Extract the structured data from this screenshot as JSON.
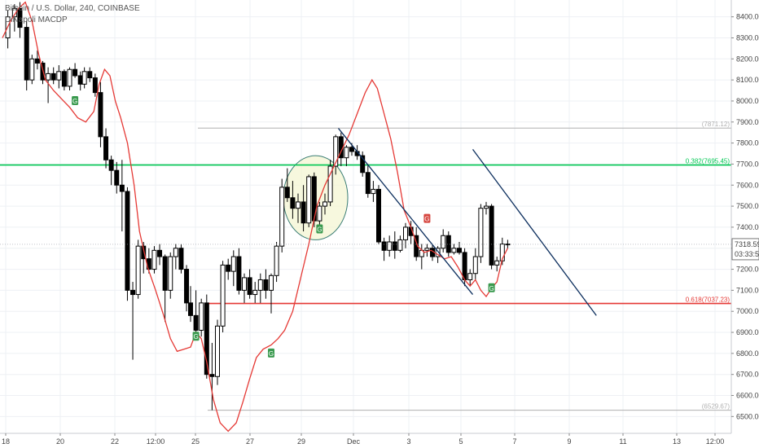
{
  "legend": {
    "symbol_line": "Bitcoin / U.S. Dollar, 240, COINBASE",
    "indicator_line": "DiNapoli MACDP"
  },
  "chart_data": {
    "type": "candlestick",
    "title": "",
    "xlabel": "",
    "ylabel": "",
    "ylim": [
      6420,
      8480
    ],
    "x_tick_labels": [
      "18",
      "20",
      "22",
      "12:00",
      "25",
      "27",
      "29",
      "Dec",
      "3",
      "5",
      "7",
      "9",
      "11",
      "13",
      "12:00"
    ],
    "y_tick_labels": [
      "6500.00",
      "6600.00",
      "6700.00",
      "6800.00",
      "6900.00",
      "7000.00",
      "7100.00",
      "7200.00",
      "7300.00",
      "7400.00",
      "7500.00",
      "7600.00",
      "7700.00",
      "7800.00",
      "7900.00",
      "8000.00",
      "8100.00",
      "8200.00",
      "8300.00",
      "8400.00"
    ],
    "grid": true,
    "last_price": "7318.59",
    "countdown": "03:33:52",
    "colors": {
      "up_candle": "#ffffff",
      "down_candle": "#000000",
      "candle_outline": "#000000",
      "macdp_line": "#e53935",
      "fib_0382": "#00c853",
      "fib_0618": "#e53935",
      "fib_extreme": "#b0b0b0",
      "trendline": "#0d2f5e",
      "buy_tag": "#3a9a4f",
      "sell_tag": "#d6463f",
      "circle_fill": "#f3f5d0",
      "circle_stroke": "#3a7d74"
    },
    "fib_levels": [
      {
        "label": "(7871.12)",
        "value": 7871.12
      },
      {
        "label": "0.382(7695.45)",
        "value": 7695.45
      },
      {
        "label": "0.618(7037.23)",
        "value": 7037.23
      },
      {
        "label": "(6529.67)",
        "value": 6529.67
      }
    ],
    "candles": [
      [
        0.4,
        8300,
        8430,
        8250,
        8400
      ],
      [
        0.9,
        8400,
        8460,
        8330,
        8440
      ],
      [
        1.3,
        8440,
        8470,
        8300,
        8350
      ],
      [
        1.8,
        8350,
        8380,
        8050,
        8100
      ],
      [
        2.2,
        8100,
        8220,
        8080,
        8200
      ],
      [
        2.6,
        8200,
        8240,
        8150,
        8180
      ],
      [
        3.0,
        8180,
        8190,
        8080,
        8100
      ],
      [
        3.4,
        8100,
        8160,
        7990,
        8130
      ],
      [
        3.8,
        8130,
        8160,
        8080,
        8100
      ],
      [
        4.2,
        8100,
        8170,
        8060,
        8140
      ],
      [
        4.6,
        8140,
        8150,
        8050,
        8070
      ],
      [
        5.0,
        8070,
        8160,
        8050,
        8150
      ],
      [
        5.4,
        8150,
        8180,
        8110,
        8120
      ],
      [
        5.8,
        8120,
        8140,
        8050,
        8080
      ],
      [
        6.1,
        8080,
        8160,
        8060,
        8140
      ],
      [
        6.5,
        8140,
        8160,
        8090,
        8110
      ],
      [
        6.9,
        8110,
        8130,
        8020,
        8040
      ],
      [
        7.3,
        8040,
        8090,
        7780,
        7830
      ],
      [
        7.7,
        7830,
        7870,
        7680,
        7720
      ],
      [
        8.1,
        7720,
        7740,
        7600,
        7670
      ],
      [
        8.5,
        7670,
        7710,
        7560,
        7600
      ],
      [
        8.9,
        7600,
        7720,
        7380,
        7570
      ],
      [
        9.3,
        7570,
        7590,
        7050,
        7100
      ],
      [
        9.7,
        7100,
        7140,
        6770,
        7080
      ],
      [
        10.1,
        7080,
        7340,
        7060,
        7310
      ],
      [
        10.5,
        7310,
        7330,
        7180,
        7250
      ],
      [
        10.9,
        7250,
        7300,
        7180,
        7200
      ],
      [
        11.3,
        7200,
        7310,
        7180,
        7290
      ],
      [
        11.7,
        7290,
        7320,
        7220,
        7260
      ],
      [
        12.1,
        7260,
        7270,
        6950,
        7100
      ],
      [
        12.5,
        7100,
        7280,
        7060,
        7260
      ],
      [
        12.9,
        7260,
        7320,
        7200,
        7300
      ],
      [
        13.3,
        7300,
        7320,
        7180,
        7200
      ],
      [
        13.7,
        7200,
        7220,
        7000,
        7040
      ],
      [
        14.0,
        7040,
        7120,
        6950,
        6980
      ],
      [
        14.4,
        6980,
        7100,
        6890,
        6910
      ],
      [
        14.8,
        6910,
        7060,
        6880,
        7040
      ],
      [
        15.2,
        7040,
        7080,
        6680,
        6700
      ],
      [
        15.6,
        6700,
        6850,
        6530,
        6690
      ],
      [
        16.0,
        6690,
        6960,
        6650,
        6930
      ],
      [
        16.4,
        6930,
        7240,
        6900,
        7220
      ],
      [
        16.8,
        7220,
        7250,
        7150,
        7190
      ],
      [
        17.2,
        7190,
        7290,
        7120,
        7260
      ],
      [
        17.6,
        7260,
        7300,
        7080,
        7100
      ],
      [
        18.0,
        7100,
        7180,
        7040,
        7160
      ],
      [
        18.4,
        7160,
        7200,
        7060,
        7080
      ],
      [
        18.8,
        7080,
        7140,
        7040,
        7100
      ],
      [
        19.2,
        7100,
        7180,
        7040,
        7150
      ],
      [
        19.6,
        7150,
        7200,
        7060,
        7100
      ],
      [
        20.0,
        7100,
        7180,
        6990,
        7170
      ],
      [
        20.4,
        7170,
        7330,
        7140,
        7310
      ],
      [
        20.8,
        7310,
        7630,
        7280,
        7590
      ],
      [
        21.2,
        7590,
        7680,
        7520,
        7540
      ],
      [
        21.6,
        7540,
        7620,
        7440,
        7490
      ],
      [
        22.0,
        7490,
        7560,
        7420,
        7520
      ],
      [
        22.4,
        7520,
        7600,
        7380,
        7420
      ],
      [
        22.8,
        7420,
        7650,
        7400,
        7640
      ],
      [
        23.2,
        7640,
        7660,
        7400,
        7430
      ],
      [
        23.6,
        7430,
        7520,
        7380,
        7500
      ],
      [
        24.0,
        7500,
        7560,
        7460,
        7520
      ],
      [
        24.4,
        7520,
        7720,
        7500,
        7690
      ],
      [
        24.8,
        7690,
        7840,
        7650,
        7830
      ],
      [
        25.2,
        7830,
        7850,
        7690,
        7730
      ],
      [
        25.6,
        7730,
        7790,
        7690,
        7780
      ],
      [
        26.0,
        7780,
        7800,
        7740,
        7760
      ],
      [
        26.4,
        7760,
        7790,
        7720,
        7740
      ],
      [
        26.8,
        7740,
        7760,
        7640,
        7660
      ],
      [
        27.2,
        7660,
        7700,
        7540,
        7560
      ],
      [
        27.6,
        7560,
        7620,
        7520,
        7580
      ],
      [
        28.0,
        7580,
        7600,
        7320,
        7330
      ],
      [
        28.4,
        7330,
        7350,
        7240,
        7290
      ],
      [
        28.8,
        7290,
        7360,
        7260,
        7330
      ],
      [
        29.2,
        7330,
        7380,
        7250,
        7290
      ],
      [
        29.6,
        7290,
        7360,
        7280,
        7340
      ],
      [
        30.0,
        7340,
        7420,
        7300,
        7400
      ],
      [
        30.4,
        7400,
        7430,
        7320,
        7360
      ],
      [
        30.8,
        7360,
        7400,
        7240,
        7260
      ],
      [
        31.2,
        7260,
        7320,
        7200,
        7290
      ],
      [
        31.6,
        7290,
        7320,
        7260,
        7300
      ],
      [
        32.0,
        7300,
        7320,
        7240,
        7260
      ],
      [
        32.4,
        7260,
        7310,
        7230,
        7300
      ],
      [
        32.8,
        7300,
        7390,
        7280,
        7360
      ],
      [
        33.2,
        7360,
        7380,
        7260,
        7280
      ],
      [
        33.6,
        7280,
        7320,
        7270,
        7300
      ],
      [
        34.0,
        7300,
        7330,
        7270,
        7280
      ],
      [
        34.4,
        7280,
        7300,
        7120,
        7150
      ],
      [
        34.8,
        7150,
        7200,
        7120,
        7180
      ],
      [
        35.2,
        7180,
        7300,
        7150,
        7260
      ],
      [
        35.6,
        7260,
        7510,
        7230,
        7490
      ],
      [
        36.0,
        7490,
        7520,
        7460,
        7500
      ],
      [
        36.4,
        7500,
        7510,
        7200,
        7220
      ],
      [
        36.8,
        7220,
        7260,
        7190,
        7240
      ],
      [
        37.2,
        7240,
        7350,
        7220,
        7320
      ],
      [
        37.6,
        7320,
        7340,
        7300,
        7319
      ]
    ],
    "macdp_line": [
      [
        0.0,
        8300
      ],
      [
        0.6,
        8380
      ],
      [
        1.2,
        8440
      ],
      [
        1.7,
        8470
      ],
      [
        2.2,
        8380
      ],
      [
        2.7,
        8220
      ],
      [
        3.2,
        8100
      ],
      [
        3.8,
        8050
      ],
      [
        4.4,
        8010
      ],
      [
        5.0,
        7970
      ],
      [
        5.6,
        7920
      ],
      [
        6.2,
        7900
      ],
      [
        6.8,
        7950
      ],
      [
        7.2,
        8080
      ],
      [
        7.6,
        8150
      ],
      [
        8.0,
        8120
      ],
      [
        8.4,
        8000
      ],
      [
        8.8,
        7920
      ],
      [
        9.3,
        7800
      ],
      [
        9.8,
        7600
      ],
      [
        10.2,
        7380
      ],
      [
        10.8,
        7210
      ],
      [
        11.4,
        7100
      ],
      [
        12.0,
        6980
      ],
      [
        12.5,
        6870
      ],
      [
        13.0,
        6810
      ],
      [
        13.5,
        6820
      ],
      [
        14.0,
        6830
      ],
      [
        14.4,
        6900
      ],
      [
        14.8,
        6870
      ],
      [
        15.2,
        6760
      ],
      [
        15.7,
        6580
      ],
      [
        16.2,
        6470
      ],
      [
        16.8,
        6430
      ],
      [
        17.4,
        6470
      ],
      [
        17.9,
        6570
      ],
      [
        18.4,
        6680
      ],
      [
        18.9,
        6780
      ],
      [
        19.4,
        6820
      ],
      [
        20.0,
        6840
      ],
      [
        20.5,
        6870
      ],
      [
        21.0,
        6910
      ],
      [
        21.6,
        7000
      ],
      [
        22.2,
        7160
      ],
      [
        22.8,
        7320
      ],
      [
        23.4,
        7500
      ],
      [
        24.0,
        7600
      ],
      [
        24.6,
        7680
      ],
      [
        25.2,
        7760
      ],
      [
        25.8,
        7840
      ],
      [
        26.4,
        7940
      ],
      [
        27.0,
        8040
      ],
      [
        27.5,
        8100
      ],
      [
        27.9,
        8060
      ],
      [
        28.4,
        7940
      ],
      [
        28.9,
        7820
      ],
      [
        29.4,
        7660
      ],
      [
        29.9,
        7480
      ],
      [
        30.4,
        7400
      ],
      [
        30.9,
        7310
      ],
      [
        31.4,
        7280
      ],
      [
        31.9,
        7290
      ],
      [
        32.4,
        7270
      ],
      [
        32.9,
        7250
      ],
      [
        33.4,
        7260
      ],
      [
        33.9,
        7210
      ],
      [
        34.4,
        7150
      ],
      [
        34.8,
        7120
      ],
      [
        35.2,
        7150
      ],
      [
        35.6,
        7100
      ],
      [
        36.0,
        7070
      ],
      [
        36.4,
        7110
      ],
      [
        36.8,
        7140
      ],
      [
        37.2,
        7250
      ],
      [
        37.6,
        7300
      ]
    ],
    "trendlines": [
      {
        "from": [
          25.0,
          7870
        ],
        "to": [
          35.0,
          7080
        ]
      },
      {
        "from": [
          35.0,
          7770
        ],
        "to": [
          44.2,
          6980
        ]
      }
    ],
    "signal_tags": [
      {
        "label": "G",
        "kind": "buy",
        "x": 5.4,
        "y": 8000
      },
      {
        "label": "G",
        "kind": "buy",
        "x": 14.4,
        "y": 6880
      },
      {
        "label": "G",
        "kind": "buy",
        "x": 20.0,
        "y": 6800
      },
      {
        "label": "G",
        "kind": "buy",
        "x": 23.6,
        "y": 7390
      },
      {
        "label": "G",
        "kind": "sell",
        "x": 31.6,
        "y": 7440
      },
      {
        "label": "G",
        "kind": "buy",
        "x": 36.4,
        "y": 7110
      }
    ],
    "highlight_circle": {
      "cx": 23.3,
      "cy": 7540,
      "rx": 2.4,
      "ry": 200
    }
  }
}
